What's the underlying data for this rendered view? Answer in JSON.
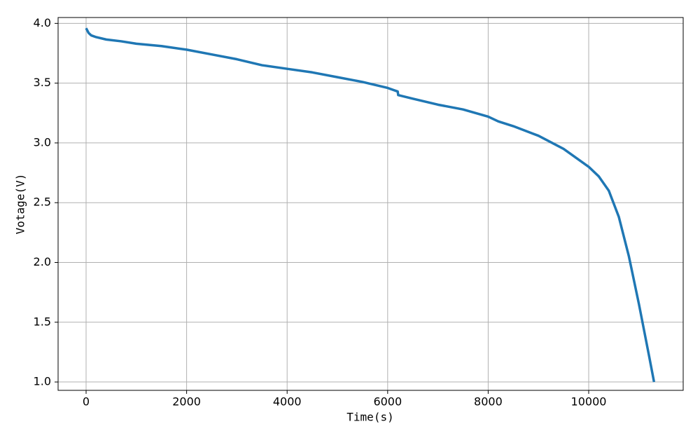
{
  "chart_data": {
    "type": "line",
    "x_label": "Time(s)",
    "y_label": "Votage(V)",
    "x": [
      0,
      50,
      100,
      200,
      400,
      700,
      1000,
      1500,
      2000,
      2500,
      3000,
      3500,
      4000,
      4500,
      5000,
      5500,
      6000,
      6200,
      6210,
      6500,
      7000,
      7500,
      8000,
      8200,
      8500,
      9000,
      9500,
      10000,
      10200,
      10400,
      10600,
      10800,
      11000,
      11200,
      11300
    ],
    "series": [
      {
        "color": "#1f77b4",
        "values": [
          3.96,
          3.92,
          3.9,
          3.885,
          3.865,
          3.85,
          3.83,
          3.81,
          3.78,
          3.74,
          3.7,
          3.65,
          3.62,
          3.59,
          3.55,
          3.51,
          3.46,
          3.43,
          3.4,
          3.37,
          3.32,
          3.28,
          3.22,
          3.18,
          3.14,
          3.06,
          2.95,
          2.8,
          2.72,
          2.6,
          2.38,
          2.05,
          1.65,
          1.22,
          1.0
        ]
      }
    ],
    "xlim": [
      -557,
      11880
    ],
    "ylim": [
      0.93,
      4.049
    ],
    "xticks": [
      0,
      2000,
      4000,
      6000,
      8000,
      10000
    ],
    "yticks": [
      {
        "value": 1,
        "label": "1.0"
      },
      {
        "value": 1.5,
        "label": "1.5"
      },
      {
        "value": 2,
        "label": "2.0"
      },
      {
        "value": 2.5,
        "label": "2.5"
      },
      {
        "value": 3,
        "label": "3.0"
      },
      {
        "value": 3.5,
        "label": "3.5"
      },
      {
        "value": 4,
        "label": "4.0"
      }
    ],
    "grid": true
  }
}
